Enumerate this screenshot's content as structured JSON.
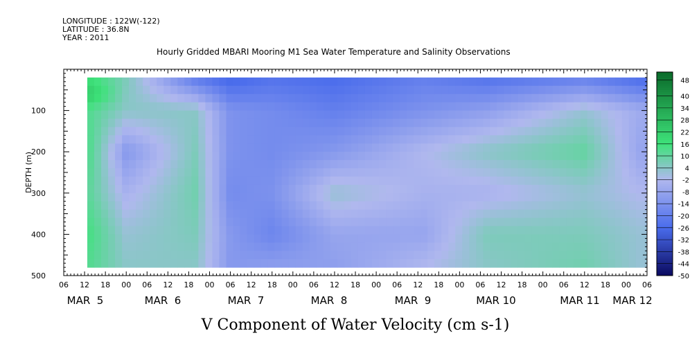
{
  "header": {
    "longitude": "LONGITUDE : 122W(-122)",
    "latitude": "LATITUDE : 36.8N",
    "year": "YEAR : 2011"
  },
  "chart_data": {
    "type": "heatmap",
    "title": "Hourly Gridded MBARI Mooring M1 Sea Water Temperature and Salinity Observations",
    "xlabel": "V Component of Water Velocity (cm s-1)",
    "ylabel": "DEPTH (m)",
    "ylim": [
      500,
      0
    ],
    "yticks": [
      100,
      200,
      300,
      400,
      500
    ],
    "data_depth_range": [
      20,
      480
    ],
    "xlim_hours": [
      0,
      168
    ],
    "x_hour_ticks": [
      "06",
      "12",
      "18",
      "00",
      "06",
      "12",
      "18",
      "00",
      "06",
      "12",
      "18",
      "00",
      "06",
      "12",
      "18",
      "00",
      "06",
      "12",
      "18",
      "00",
      "06",
      "12",
      "18",
      "00",
      "06",
      "12",
      "18",
      "00",
      "06"
    ],
    "x_day_labels": [
      "MAR  5",
      "MAR  6",
      "MAR  7",
      "MAR  8",
      "MAR  9",
      "MAR 10",
      "MAR 11",
      "MAR 12"
    ],
    "colorbar": {
      "levels": [
        48,
        40,
        34,
        28,
        22,
        16,
        10,
        4,
        -2,
        -8,
        -14,
        -20,
        -26,
        -32,
        -38,
        -44,
        -50
      ],
      "range": [
        -50,
        52
      ]
    },
    "colors": {
      "strong_positive": "#0a6a2a",
      "positive": "#3ee27a",
      "near_zero": "#b0b8ee",
      "negative": "#4a6cec",
      "strong_negative": "#0a0a60"
    },
    "columns": [
      {
        "hour": 8,
        "profile": [
          [
            20,
            16
          ],
          [
            60,
            22
          ],
          [
            100,
            12
          ],
          [
            200,
            12
          ],
          [
            300,
            10
          ],
          [
            400,
            14
          ],
          [
            480,
            12
          ]
        ]
      },
      {
        "hour": 18,
        "profile": [
          [
            20,
            6
          ],
          [
            100,
            4
          ],
          [
            200,
            -12
          ],
          [
            300,
            -4
          ],
          [
            400,
            2
          ],
          [
            480,
            4
          ]
        ]
      },
      {
        "hour": 38,
        "profile": [
          [
            20,
            -22
          ],
          [
            100,
            4
          ],
          [
            200,
            6
          ],
          [
            300,
            8
          ],
          [
            400,
            6
          ],
          [
            480,
            4
          ]
        ]
      },
      {
        "hour": 48,
        "profile": [
          [
            20,
            -28
          ],
          [
            100,
            -14
          ],
          [
            200,
            -14
          ],
          [
            300,
            -16
          ],
          [
            400,
            -12
          ],
          [
            480,
            -12
          ]
        ]
      },
      {
        "hour": 60,
        "profile": [
          [
            20,
            -24
          ],
          [
            100,
            -16
          ],
          [
            200,
            -16
          ],
          [
            300,
            -14
          ],
          [
            400,
            -18
          ],
          [
            480,
            -10
          ]
        ]
      },
      {
        "hour": 78,
        "profile": [
          [
            20,
            -26
          ],
          [
            100,
            -20
          ],
          [
            200,
            -12
          ],
          [
            300,
            2
          ],
          [
            400,
            -8
          ],
          [
            480,
            -10
          ]
        ]
      },
      {
        "hour": 104,
        "profile": [
          [
            20,
            -20
          ],
          [
            100,
            -14
          ],
          [
            200,
            -2
          ],
          [
            300,
            -4
          ],
          [
            400,
            -8
          ],
          [
            480,
            -2
          ]
        ]
      },
      {
        "hour": 122,
        "profile": [
          [
            20,
            -24
          ],
          [
            100,
            -10
          ],
          [
            200,
            4
          ],
          [
            300,
            -4
          ],
          [
            400,
            6
          ],
          [
            480,
            4
          ]
        ]
      },
      {
        "hour": 150,
        "profile": [
          [
            20,
            -20
          ],
          [
            100,
            2
          ],
          [
            200,
            10
          ],
          [
            300,
            2
          ],
          [
            400,
            6
          ],
          [
            480,
            8
          ]
        ]
      },
      {
        "hour": 166,
        "profile": [
          [
            20,
            -26
          ],
          [
            100,
            -6
          ],
          [
            200,
            -8
          ],
          [
            300,
            -2
          ],
          [
            400,
            2
          ],
          [
            480,
            2
          ]
        ]
      }
    ]
  }
}
